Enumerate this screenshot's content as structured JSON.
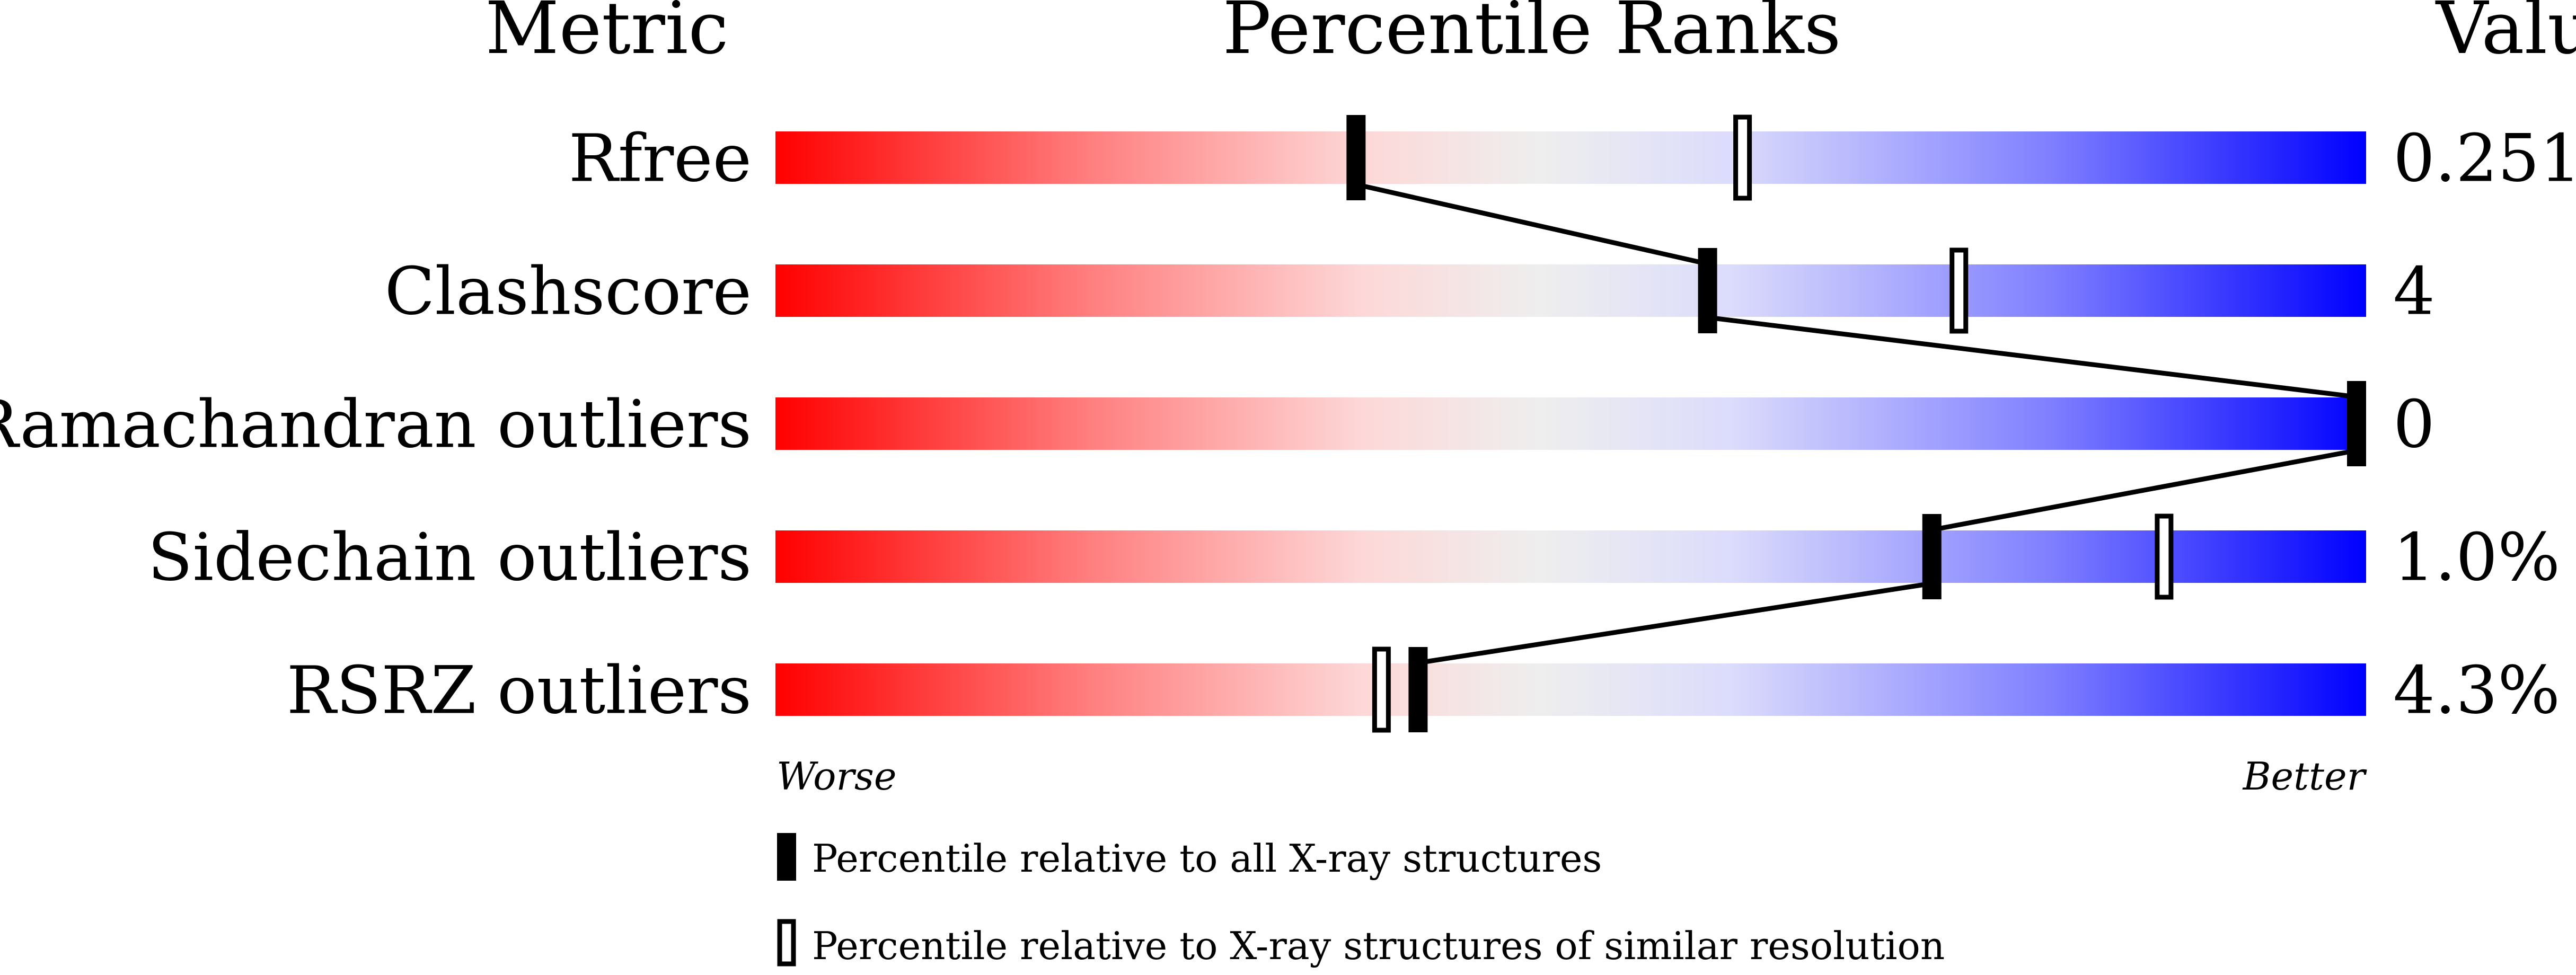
{
  "chart_data": {
    "type": "percentile-slider",
    "headers": {
      "metric": "Metric",
      "percentile": "Percentile Ranks",
      "value": "Value"
    },
    "axis": {
      "left": "Worse",
      "right": "Better",
      "range": [
        0,
        100
      ]
    },
    "colors": {
      "worse": "#ff0000",
      "mid": "#eeeeee",
      "better": "#0000ff"
    },
    "metrics": [
      {
        "name": "Rfree",
        "value": "0.251",
        "percentile_all": 36.5,
        "percentile_similar": 60.8
      },
      {
        "name": "Clashscore",
        "value": "4",
        "percentile_all": 58.6,
        "percentile_similar": 74.4
      },
      {
        "name": "Ramachandran outliers",
        "value": "0",
        "percentile_all": 100,
        "percentile_similar": 100
      },
      {
        "name": "Sidechain outliers",
        "value": "1.0%",
        "percentile_all": 72.7,
        "percentile_similar": 87.3
      },
      {
        "name": "RSRZ outliers",
        "value": "4.3%",
        "percentile_all": 40.4,
        "percentile_similar": 38.1
      }
    ],
    "legend": [
      {
        "marker": "filled",
        "label": "Percentile relative to all X-ray structures"
      },
      {
        "marker": "open",
        "label": "Percentile relative to X-ray structures of similar resolution"
      }
    ]
  }
}
